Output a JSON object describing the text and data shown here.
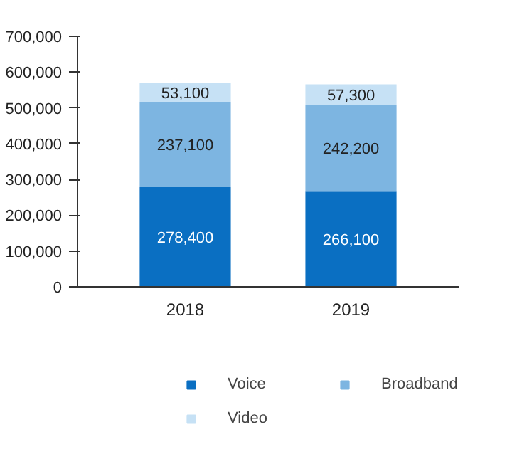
{
  "chart_data": {
    "type": "bar",
    "stacked": true,
    "categories": [
      "2018",
      "2019"
    ],
    "series": [
      {
        "name": "Voice",
        "color": "#0a6fc2",
        "values": [
          278400,
          266100
        ],
        "value_labels": [
          "278,400",
          "266,100"
        ]
      },
      {
        "name": "Broadband",
        "color": "#7db5e1",
        "values": [
          237100,
          242200
        ],
        "value_labels": [
          "237,100",
          "242,200"
        ]
      },
      {
        "name": "Video",
        "color": "#c6e1f5",
        "values": [
          53100,
          57300
        ],
        "value_labels": [
          "53,100",
          "57,300"
        ]
      }
    ],
    "ylim": [
      0,
      700000
    ],
    "yticks": [
      {
        "value": 0,
        "label": "0"
      },
      {
        "value": 100000,
        "label": "100,000"
      },
      {
        "value": 200000,
        "label": "200,000"
      },
      {
        "value": 300000,
        "label": "300,000"
      },
      {
        "value": 400000,
        "label": "400,000"
      },
      {
        "value": 500000,
        "label": "500,000"
      },
      {
        "value": 600000,
        "label": "600,000"
      },
      {
        "value": 700000,
        "label": "700,000"
      }
    ],
    "legend": "bottom",
    "grid": false
  }
}
